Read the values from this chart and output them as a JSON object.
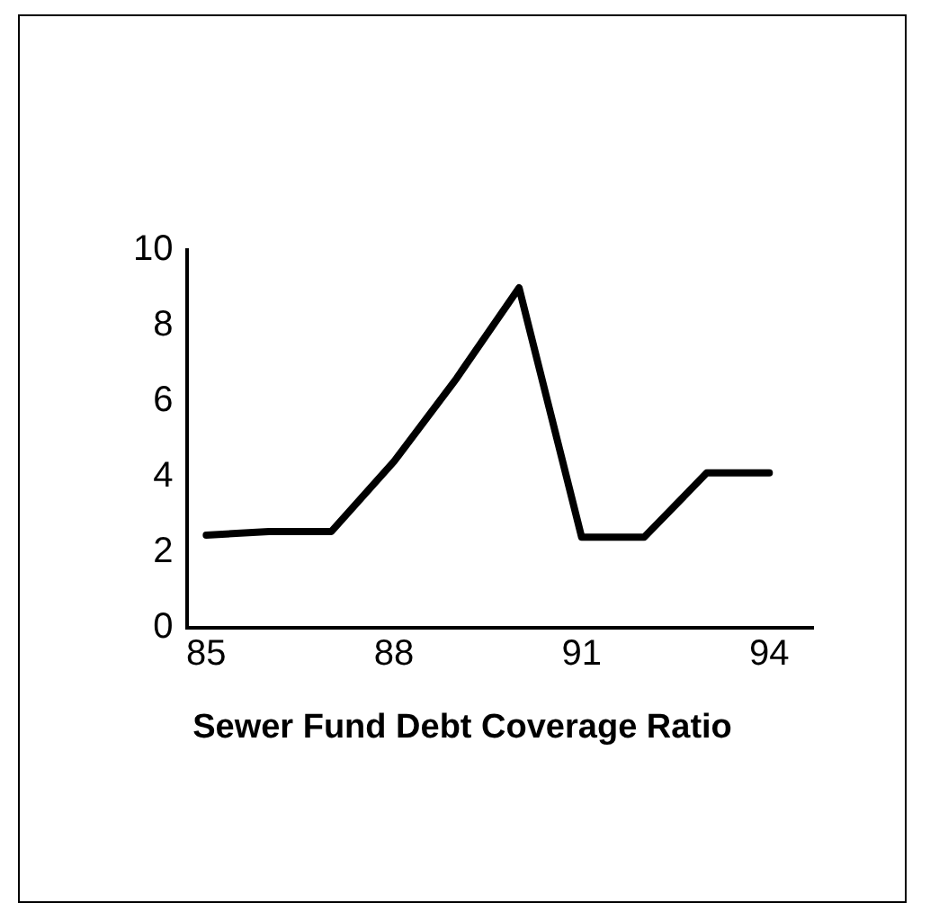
{
  "chart_data": {
    "type": "line",
    "title": "Sewer Fund Debt Coverage Ratio",
    "x": [
      85,
      86,
      87,
      88,
      89,
      90,
      91,
      92,
      93,
      94
    ],
    "series": [
      {
        "color": "#000000",
        "values": [
          2.45,
          2.55,
          2.55,
          4.4,
          6.6,
          9,
          2.4,
          2.4,
          4.1,
          4.1
        ]
      }
    ],
    "xlim": [
      84.7,
      94.7
    ],
    "xticks": [
      85,
      88,
      91,
      94
    ],
    "ylim": [
      0,
      10
    ],
    "yticks": [
      0,
      2,
      4,
      6,
      8,
      10
    ],
    "grid": false,
    "legend": false,
    "marker": "none",
    "line_style": "solid"
  }
}
